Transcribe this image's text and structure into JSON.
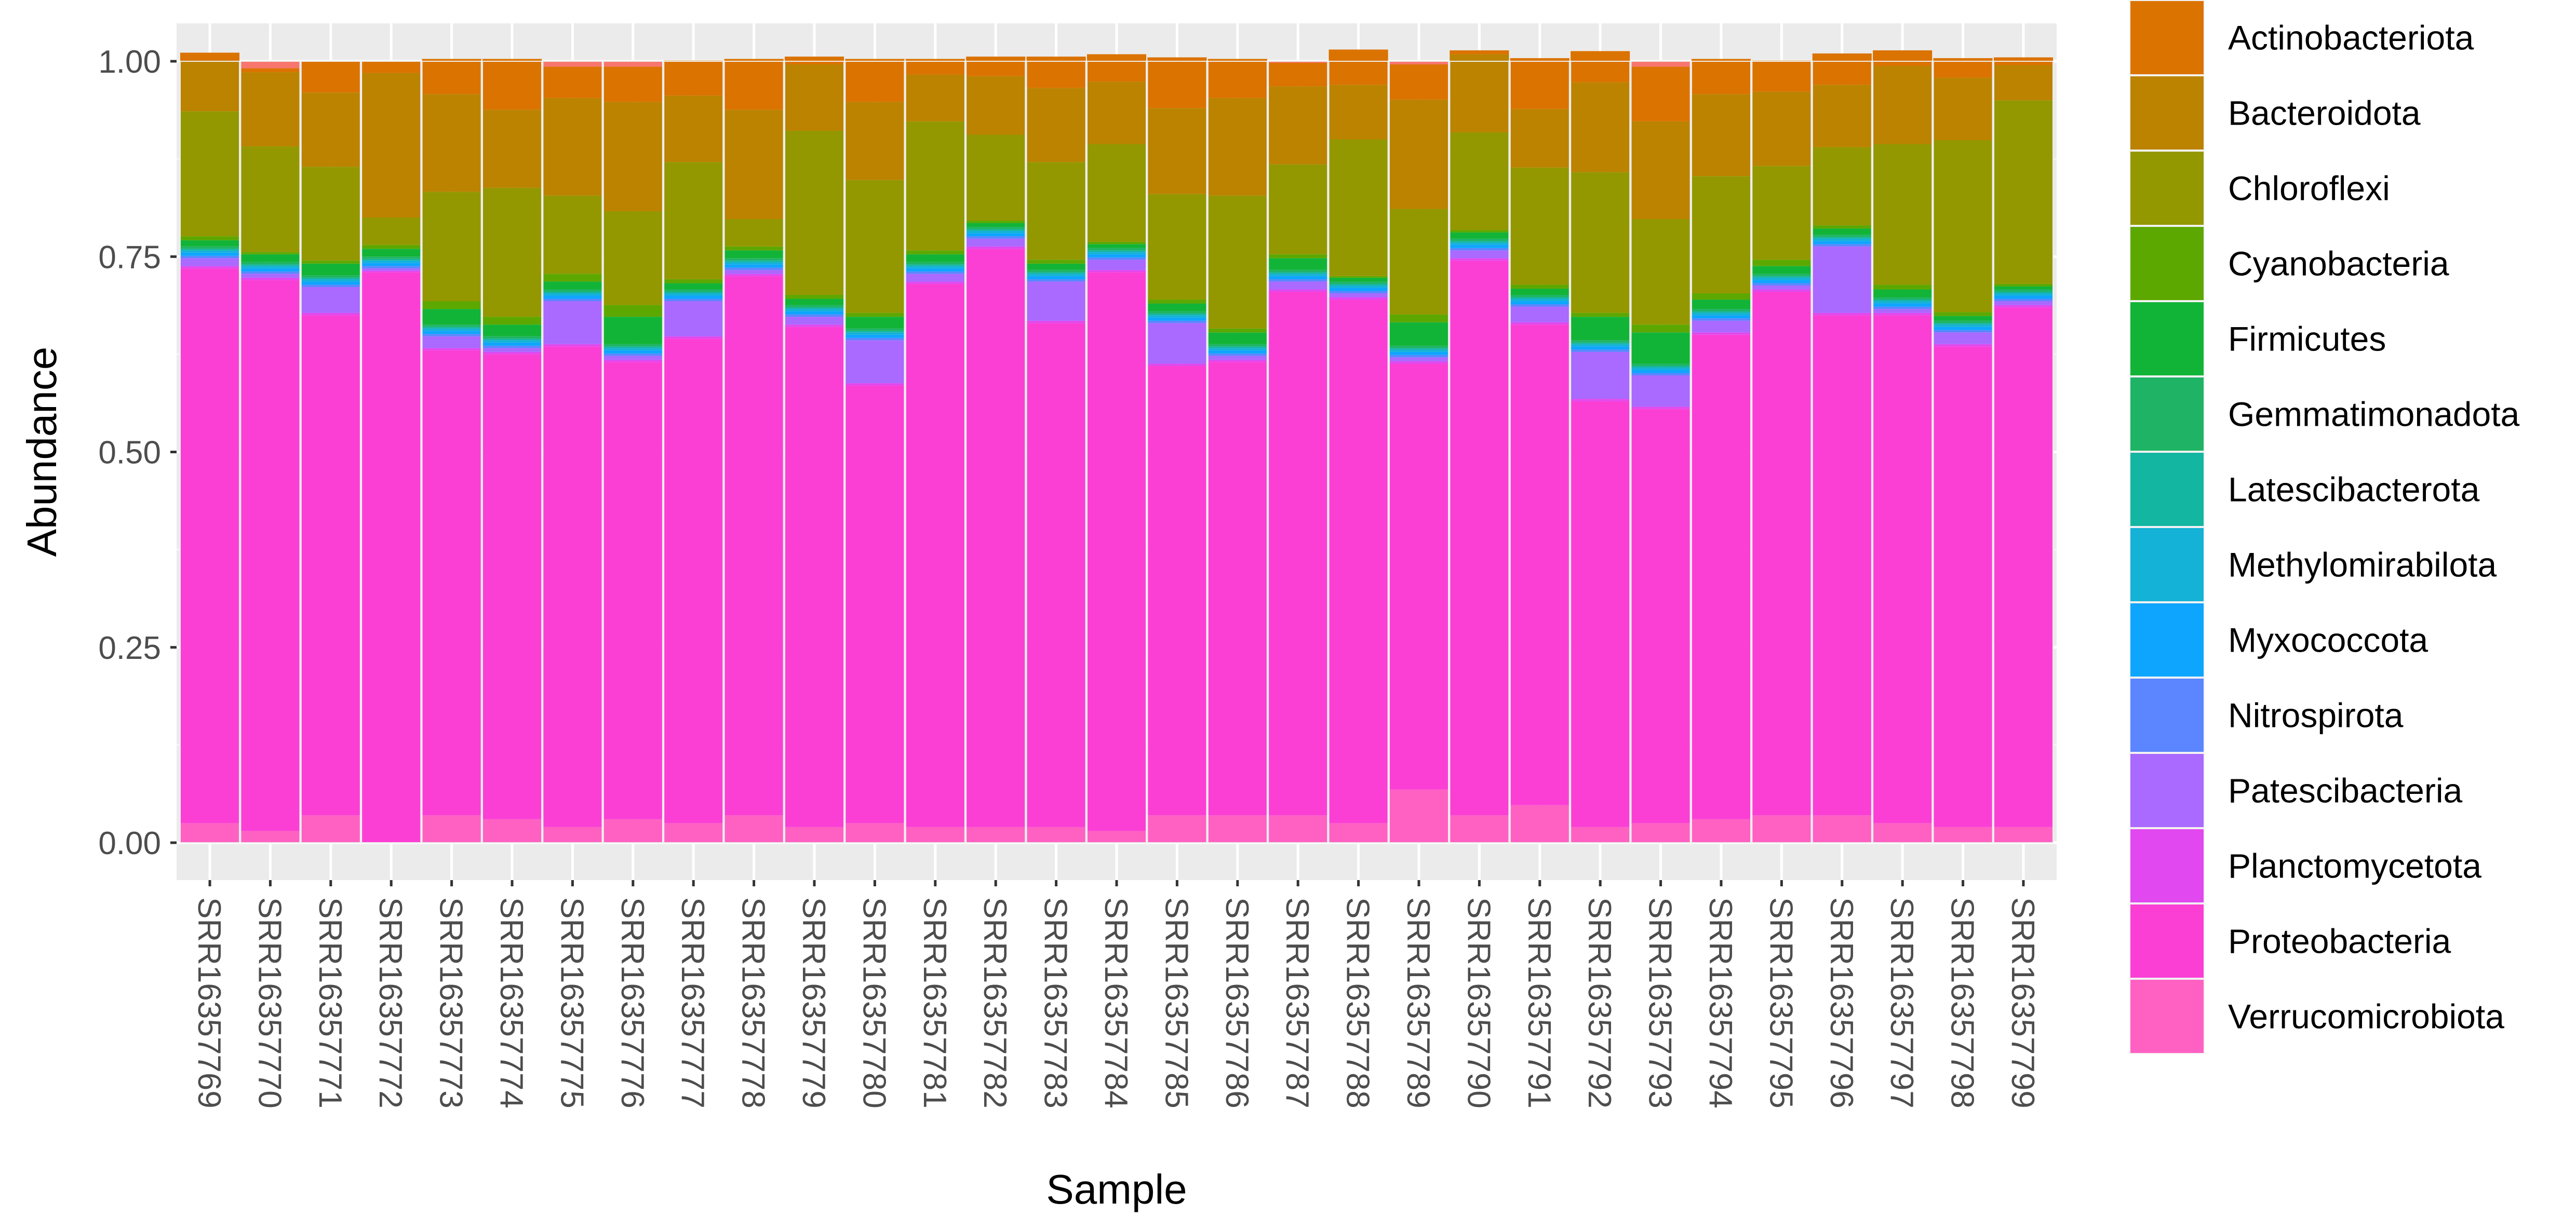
{
  "chart_data": {
    "type": "bar",
    "stacked": true,
    "title": "",
    "xlabel": "Sample",
    "ylabel": "Abundance",
    "ylim": [
      0,
      1
    ],
    "yticks": [
      "0.00",
      "0.25",
      "0.50",
      "0.75",
      "1.00"
    ],
    "grid": true,
    "legend_position": "right",
    "categories": [
      "SRR16357769",
      "SRR16357770",
      "SRR16357771",
      "SRR16357772",
      "SRR16357773",
      "SRR16357774",
      "SRR16357775",
      "SRR16357776",
      "SRR16357777",
      "SRR16357778",
      "SRR16357779",
      "SRR16357780",
      "SRR16357781",
      "SRR16357782",
      "SRR16357783",
      "SRR16357784",
      "SRR16357785",
      "SRR16357786",
      "SRR16357787",
      "SRR16357788",
      "SRR16357789",
      "SRR16357790",
      "SRR16357791",
      "SRR16357792",
      "SRR16357793",
      "SRR16357794",
      "SRR16357795",
      "SRR16357796",
      "SRR16357797",
      "SRR16357798",
      "SRR16357799"
    ],
    "series": [
      {
        "name": "Verrucomicrobiota",
        "color": "#FF61C3",
        "values": [
          0.025,
          0.015,
          0.035,
          0.0,
          0.035,
          0.03,
          0.02,
          0.03,
          0.025,
          0.035,
          0.02,
          0.025,
          0.02,
          0.02,
          0.02,
          0.015,
          0.035,
          0.035,
          0.035,
          0.025,
          0.068,
          0.035,
          0.048,
          0.02,
          0.025,
          0.03,
          0.035,
          0.035,
          0.025,
          0.02,
          0.02
        ]
      },
      {
        "name": "Proteobacteria",
        "color": "#FB3FD5",
        "values": [
          0.71,
          0.705,
          0.64,
          0.73,
          0.595,
          0.595,
          0.615,
          0.585,
          0.62,
          0.69,
          0.64,
          0.56,
          0.695,
          0.74,
          0.645,
          0.715,
          0.575,
          0.58,
          0.67,
          0.67,
          0.545,
          0.71,
          0.615,
          0.545,
          0.53,
          0.62,
          0.67,
          0.64,
          0.65,
          0.615,
          0.665
        ]
      },
      {
        "name": "Planctomycetota",
        "color": "#E148EF",
        "values": [
          0.003,
          0.003,
          0.003,
          0.002,
          0.003,
          0.003,
          0.003,
          0.003,
          0.003,
          0.003,
          0.003,
          0.003,
          0.003,
          0.003,
          0.003,
          0.003,
          0.003,
          0.003,
          0.003,
          0.003,
          0.003,
          0.003,
          0.003,
          0.003,
          0.003,
          0.003,
          0.003,
          0.003,
          0.003,
          0.003,
          0.003
        ]
      },
      {
        "name": "Patescibacteria",
        "color": "#AA69FF",
        "values": [
          0.01,
          0.005,
          0.033,
          0.003,
          0.015,
          0.005,
          0.055,
          0.005,
          0.045,
          0.005,
          0.01,
          0.055,
          0.01,
          0.01,
          0.05,
          0.013,
          0.052,
          0.005,
          0.01,
          0.005,
          0.005,
          0.01,
          0.02,
          0.06,
          0.04,
          0.015,
          0.005,
          0.085,
          0.005,
          0.015,
          0.005
        ]
      },
      {
        "name": "Nitrospirota",
        "color": "#5B86FF",
        "values": [
          0.003,
          0.003,
          0.003,
          0.003,
          0.003,
          0.003,
          0.003,
          0.003,
          0.003,
          0.003,
          0.003,
          0.003,
          0.003,
          0.003,
          0.003,
          0.003,
          0.003,
          0.003,
          0.003,
          0.003,
          0.003,
          0.003,
          0.003,
          0.003,
          0.003,
          0.003,
          0.003,
          0.003,
          0.003,
          0.003,
          0.003
        ]
      },
      {
        "name": "Myxococcota",
        "color": "#0EA5FF",
        "values": [
          0.004,
          0.004,
          0.004,
          0.004,
          0.004,
          0.004,
          0.004,
          0.004,
          0.004,
          0.004,
          0.004,
          0.004,
          0.004,
          0.004,
          0.004,
          0.004,
          0.004,
          0.004,
          0.004,
          0.004,
          0.004,
          0.004,
          0.004,
          0.004,
          0.004,
          0.004,
          0.004,
          0.004,
          0.004,
          0.004,
          0.004
        ]
      },
      {
        "name": "Methylomirabilota",
        "color": "#14B2D7",
        "values": [
          0.003,
          0.003,
          0.003,
          0.003,
          0.003,
          0.003,
          0.003,
          0.003,
          0.003,
          0.003,
          0.003,
          0.003,
          0.003,
          0.003,
          0.003,
          0.003,
          0.003,
          0.003,
          0.003,
          0.003,
          0.003,
          0.003,
          0.003,
          0.003,
          0.003,
          0.003,
          0.003,
          0.003,
          0.003,
          0.003,
          0.003
        ]
      },
      {
        "name": "Latescibacterota",
        "color": "#13B6A1",
        "values": [
          0.002,
          0.002,
          0.002,
          0.002,
          0.002,
          0.002,
          0.002,
          0.002,
          0.002,
          0.002,
          0.002,
          0.002,
          0.002,
          0.002,
          0.002,
          0.002,
          0.002,
          0.002,
          0.002,
          0.002,
          0.002,
          0.002,
          0.002,
          0.002,
          0.002,
          0.002,
          0.002,
          0.002,
          0.002,
          0.002,
          0.002
        ]
      },
      {
        "name": "Gemmatimonadota",
        "color": "#1FB465",
        "values": [
          0.003,
          0.003,
          0.003,
          0.003,
          0.003,
          0.003,
          0.003,
          0.003,
          0.003,
          0.003,
          0.003,
          0.003,
          0.003,
          0.003,
          0.003,
          0.003,
          0.003,
          0.003,
          0.003,
          0.003,
          0.003,
          0.003,
          0.003,
          0.003,
          0.003,
          0.003,
          0.003,
          0.003,
          0.003,
          0.003,
          0.003
        ]
      },
      {
        "name": "Firmicutes",
        "color": "#12B437",
        "values": [
          0.008,
          0.01,
          0.015,
          0.01,
          0.02,
          0.015,
          0.01,
          0.035,
          0.008,
          0.01,
          0.008,
          0.015,
          0.01,
          0.005,
          0.008,
          0.005,
          0.01,
          0.015,
          0.015,
          0.005,
          0.03,
          0.008,
          0.008,
          0.03,
          0.04,
          0.012,
          0.01,
          0.008,
          0.01,
          0.006,
          0.004
        ]
      },
      {
        "name": "Cyanobacteria",
        "color": "#5DA800",
        "values": [
          0.005,
          0.003,
          0.004,
          0.005,
          0.01,
          0.01,
          0.01,
          0.015,
          0.005,
          0.005,
          0.005,
          0.005,
          0.005,
          0.003,
          0.005,
          0.003,
          0.005,
          0.005,
          0.005,
          0.002,
          0.01,
          0.003,
          0.005,
          0.005,
          0.01,
          0.008,
          0.008,
          0.004,
          0.006,
          0.005,
          0.003
        ]
      },
      {
        "name": "Chloroflexi",
        "color": "#939800",
        "values": [
          0.16,
          0.135,
          0.12,
          0.035,
          0.14,
          0.165,
          0.1,
          0.12,
          0.15,
          0.035,
          0.21,
          0.17,
          0.165,
          0.11,
          0.125,
          0.125,
          0.135,
          0.17,
          0.115,
          0.175,
          0.135,
          0.125,
          0.15,
          0.18,
          0.135,
          0.15,
          0.12,
          0.1,
          0.18,
          0.22,
          0.235
        ]
      },
      {
        "name": "Bacteroidota",
        "color": "#BB8300",
        "values": [
          0.065,
          0.095,
          0.095,
          0.185,
          0.125,
          0.1,
          0.125,
          0.14,
          0.085,
          0.14,
          0.085,
          0.1,
          0.06,
          0.075,
          0.095,
          0.08,
          0.11,
          0.125,
          0.1,
          0.07,
          0.14,
          0.1,
          0.075,
          0.115,
          0.125,
          0.105,
          0.095,
          0.08,
          0.1,
          0.08,
          0.045
        ]
      },
      {
        "name": "Actinobacteriota",
        "color": "#DB7300",
        "values": [
          0.01,
          0.005,
          0.04,
          0.015,
          0.045,
          0.065,
          0.04,
          0.045,
          0.045,
          0.065,
          0.01,
          0.055,
          0.02,
          0.025,
          0.04,
          0.035,
          0.065,
          0.05,
          0.03,
          0.045,
          0.045,
          0.005,
          0.065,
          0.04,
          0.07,
          0.045,
          0.04,
          0.04,
          0.02,
          0.025,
          0.01
        ]
      }
    ],
    "series_top_color": "#F8766D",
    "legend_order": [
      "Actinobacteriota",
      "Bacteroidota",
      "Chloroflexi",
      "Cyanobacteria",
      "Firmicutes",
      "Gemmatimonadota",
      "Latescibacterota",
      "Methylomirabilota",
      "Myxococcota",
      "Nitrospirota",
      "Patescibacteria",
      "Planctomycetota",
      "Proteobacteria",
      "Verrucomicrobiota"
    ]
  }
}
